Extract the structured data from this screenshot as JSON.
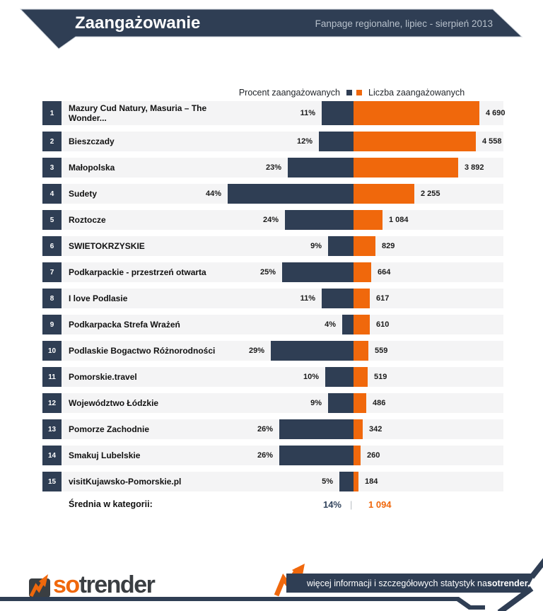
{
  "header": {
    "title": "Zaangażowanie",
    "subtitle": "Fanpage regionalne, lipiec - sierpień 2013"
  },
  "legend": {
    "left": "Procent zaangażowanych",
    "right": "Liczba zaangażowanych"
  },
  "colors": {
    "navy": "#2f3e54",
    "orange": "#f0680c",
    "row_background": "#f4f4f5"
  },
  "chart_data": {
    "type": "bar",
    "orientation": "horizontal-diverging",
    "title": "Zaangażowanie",
    "subtitle": "Fanpage regionalne, lipiec - sierpień 2013",
    "legend_position": "top-center",
    "categories": [
      "Mazury Cud Natury, Masuria – The Wonder...",
      "Bieszczady",
      "Małopolska",
      "Sudety",
      "Roztocze",
      "SWIETOKRZYSKIE",
      "Podkarpackie - przestrzeń otwarta",
      "I love Podlasie",
      "Podkarpacka Strefa Wrażeń",
      "Podlaskie Bogactwo Różnorodności",
      "Pomorskie.travel",
      "Województwo Łódzkie",
      "Pomorze Zachodnie",
      "Smakuj Lubelskie",
      "visitKujawsko-Pomorskie.pl"
    ],
    "ranks": [
      "1",
      "2",
      "3",
      "4",
      "5",
      "6",
      "7",
      "8",
      "9",
      "10",
      "11",
      "12",
      "13",
      "14",
      "15"
    ],
    "series": [
      {
        "name": "Procent zaangażowanych",
        "unit": "%",
        "color": "#2f3e54",
        "direction": "left",
        "values": [
          11,
          12,
          23,
          44,
          24,
          9,
          25,
          11,
          4,
          29,
          10,
          9,
          26,
          26,
          5
        ],
        "labels": [
          "11%",
          "12%",
          "23%",
          "44%",
          "24%",
          "9%",
          "25%",
          "11%",
          "4%",
          "29%",
          "10%",
          "9%",
          "26%",
          "26%",
          "5%"
        ],
        "axis_max": 44
      },
      {
        "name": "Liczba zaangażowanych",
        "unit": "",
        "color": "#f0680c",
        "direction": "right",
        "values": [
          4690,
          4558,
          3892,
          2255,
          1084,
          829,
          664,
          617,
          610,
          559,
          519,
          486,
          342,
          260,
          184
        ],
        "labels": [
          "4 690",
          "4 558",
          "3 892",
          "2 255",
          "1 084",
          "829",
          "664",
          "617",
          "610",
          "559",
          "519",
          "486",
          "342",
          "260",
          "184"
        ],
        "axis_max": 4690
      }
    ],
    "average": {
      "label": "Średnia w kategorii:",
      "pct": "14%",
      "separator": "|",
      "value": "1 094"
    }
  },
  "footer": {
    "logo_so": "so",
    "logo_rest": "trender",
    "info_prefix": "więcej informacji i szczegółowych statystyk na ",
    "info_bold": "sotrender.com"
  }
}
